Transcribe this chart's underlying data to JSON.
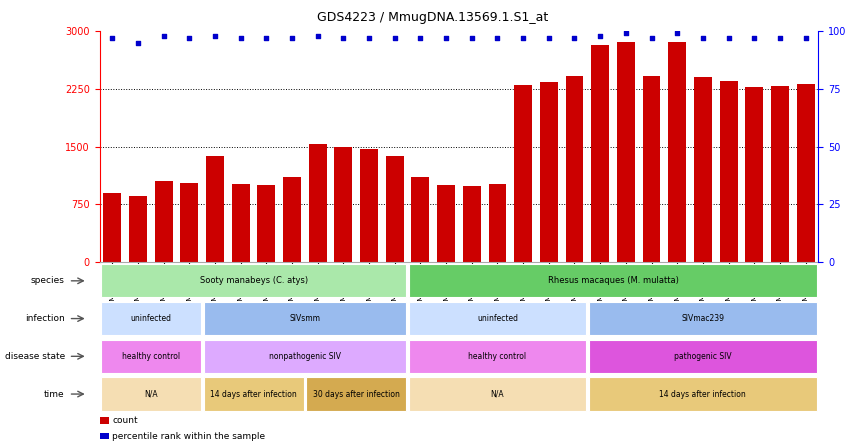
{
  "title": "GDS4223 / MmugDNA.13569.1.S1_at",
  "samples": [
    "GSM440057",
    "GSM440058",
    "GSM440059",
    "GSM440060",
    "GSM440061",
    "GSM440062",
    "GSM440063",
    "GSM440064",
    "GSM440065",
    "GSM440066",
    "GSM440067",
    "GSM440068",
    "GSM440069",
    "GSM440070",
    "GSM440071",
    "GSM440072",
    "GSM440073",
    "GSM440074",
    "GSM440075",
    "GSM440076",
    "GSM440077",
    "GSM440078",
    "GSM440079",
    "GSM440080",
    "GSM440081",
    "GSM440082",
    "GSM440083",
    "GSM440084"
  ],
  "counts": [
    900,
    860,
    1050,
    1020,
    1380,
    1010,
    1000,
    1100,
    1530,
    1490,
    1470,
    1380,
    1100,
    1000,
    990,
    1010,
    2300,
    2340,
    2420,
    2820,
    2860,
    2420,
    2860,
    2400,
    2350,
    2270,
    2280,
    2310
  ],
  "percentile_ranks": [
    97,
    95,
    98,
    97,
    98,
    97,
    97,
    97,
    98,
    97,
    97,
    97,
    97,
    97,
    97,
    97,
    97,
    97,
    97,
    98,
    99,
    97,
    99,
    97,
    97,
    97,
    97,
    97
  ],
  "bar_color": "#cc0000",
  "dot_color": "#0000cc",
  "ylim_left": [
    0,
    3000
  ],
  "ylim_right": [
    0,
    100
  ],
  "yticks_left": [
    0,
    750,
    1500,
    2250,
    3000
  ],
  "yticks_right": [
    0,
    25,
    50,
    75,
    100
  ],
  "grid_values": [
    750,
    1500,
    2250
  ],
  "annotation_rows": [
    {
      "label": "species",
      "segments": [
        {
          "text": "Sooty manabeys (C. atys)",
          "start": 0,
          "end": 12,
          "color": "#aae8aa"
        },
        {
          "text": "Rhesus macaques (M. mulatta)",
          "start": 12,
          "end": 28,
          "color": "#66cc66"
        }
      ]
    },
    {
      "label": "infection",
      "segments": [
        {
          "text": "uninfected",
          "start": 0,
          "end": 4,
          "color": "#cce0ff"
        },
        {
          "text": "SIVsmm",
          "start": 4,
          "end": 12,
          "color": "#99bbee"
        },
        {
          "text": "uninfected",
          "start": 12,
          "end": 19,
          "color": "#cce0ff"
        },
        {
          "text": "SIVmac239",
          "start": 19,
          "end": 28,
          "color": "#99bbee"
        }
      ]
    },
    {
      "label": "disease state",
      "segments": [
        {
          "text": "healthy control",
          "start": 0,
          "end": 4,
          "color": "#ee88ee"
        },
        {
          "text": "nonpathogenic SIV",
          "start": 4,
          "end": 12,
          "color": "#ddaaff"
        },
        {
          "text": "healthy control",
          "start": 12,
          "end": 19,
          "color": "#ee88ee"
        },
        {
          "text": "pathogenic SIV",
          "start": 19,
          "end": 28,
          "color": "#dd55dd"
        }
      ]
    },
    {
      "label": "time",
      "segments": [
        {
          "text": "N/A",
          "start": 0,
          "end": 4,
          "color": "#f5deb3"
        },
        {
          "text": "14 days after infection",
          "start": 4,
          "end": 8,
          "color": "#e8c97a"
        },
        {
          "text": "30 days after infection",
          "start": 8,
          "end": 12,
          "color": "#d4aa50"
        },
        {
          "text": "N/A",
          "start": 12,
          "end": 19,
          "color": "#f5deb3"
        },
        {
          "text": "14 days after infection",
          "start": 19,
          "end": 28,
          "color": "#e8c97a"
        }
      ]
    }
  ],
  "legend": [
    {
      "color": "#cc0000",
      "label": "count"
    },
    {
      "color": "#0000cc",
      "label": "percentile rank within the sample"
    }
  ],
  "bar_width": 0.7,
  "fig_width": 8.66,
  "fig_height": 4.44,
  "dpi": 100
}
